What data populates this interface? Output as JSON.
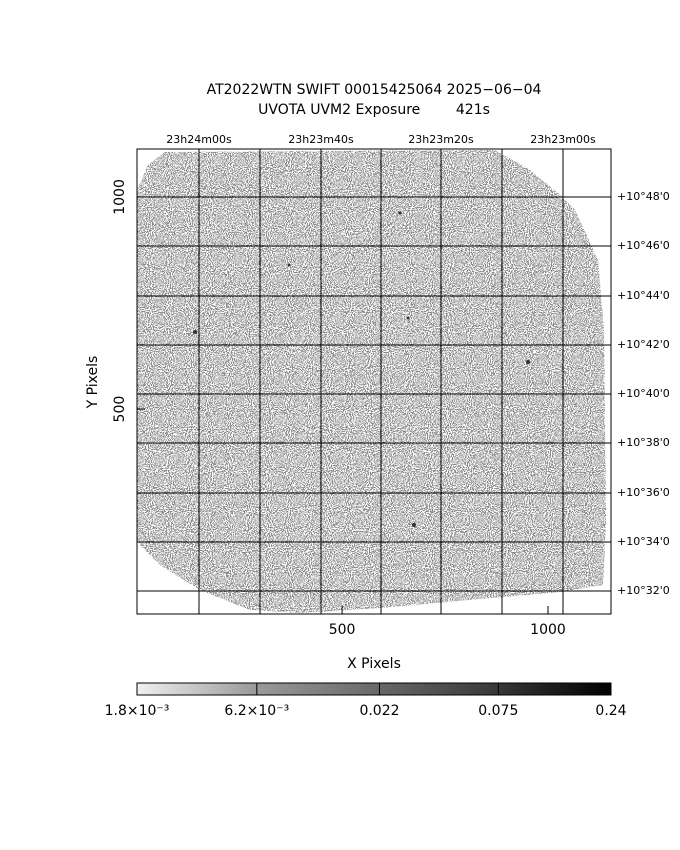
{
  "chart_data": {
    "type": "image",
    "title": "AT2022WTN SWIFT 00015425064 2025−06−04",
    "subtitle": "UVOTA UVM2 Exposure        421s",
    "x_label": "X Pixels",
    "y_label": "Y Pixels",
    "xlim": [
      2,
      1153
    ],
    "ylim": [
      17,
      1113
    ],
    "xticks": [
      500,
      1000
    ],
    "yticks": [
      500,
      1000
    ],
    "ra_labels": [
      "23h24m00s",
      "23h23m40s",
      "23h23m20s",
      "23h23m00s"
    ],
    "dec_labels": [
      "+10°48'0",
      "+10°46'0",
      "+10°44'0",
      "+10°42'0",
      "+10°40'0",
      "+10°38'0",
      "+10°36'0",
      "+10°34'0",
      "+10°32'0"
    ],
    "colorbar": {
      "log": true,
      "lim": [
        0.0018,
        0.24
      ],
      "ticks": [
        {
          "value": 0.0018,
          "label": "1.8×10⁻³"
        },
        {
          "value": 0.0062,
          "label": "6.2×10⁻³"
        },
        {
          "value": 0.022,
          "label": "0.022"
        },
        {
          "value": 0.075,
          "label": "0.075"
        },
        {
          "value": 0.24,
          "label": "0.24"
        }
      ]
    }
  }
}
